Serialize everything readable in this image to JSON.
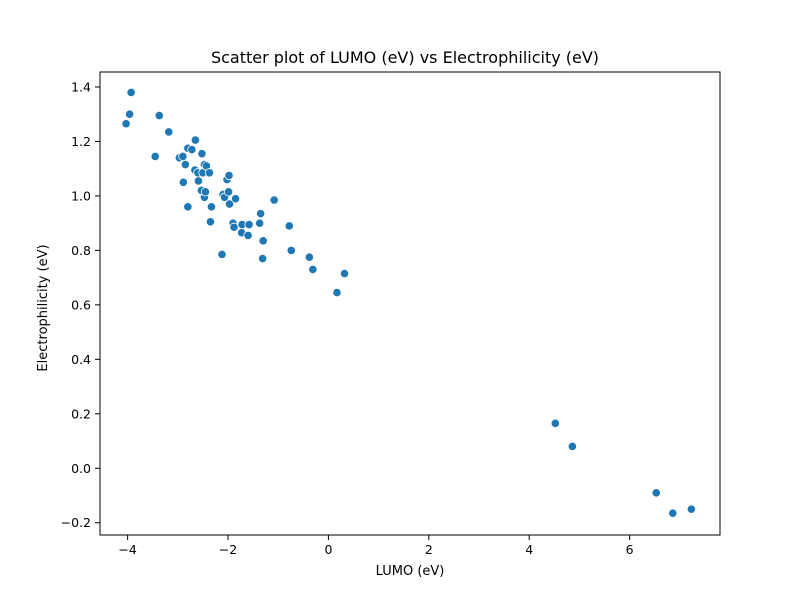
{
  "chart_data": {
    "type": "scatter",
    "title": "Scatter plot of LUMO (eV) vs Electrophilicity (eV)",
    "xlabel": "LUMO (eV)",
    "ylabel": "Electrophilicity (eV)",
    "xlim": [
      -4.55,
      7.8
    ],
    "ylim": [
      -0.245,
      1.455
    ],
    "xticks": [
      -4,
      -2,
      0,
      2,
      4,
      6
    ],
    "xtick_labels": [
      "−4",
      "−2",
      "0",
      "2",
      "4",
      "6"
    ],
    "yticks": [
      -0.2,
      0.0,
      0.2,
      0.4,
      0.6,
      0.8,
      1.0,
      1.2,
      1.4
    ],
    "ytick_labels": [
      "−0.2",
      "0.0",
      "0.2",
      "0.4",
      "0.6",
      "0.8",
      "1.0",
      "1.2",
      "1.4"
    ],
    "grid": false,
    "legend": "none",
    "marker_color": "#1f77b4",
    "points": [
      {
        "x": -4.03,
        "y": 1.265
      },
      {
        "x": -3.96,
        "y": 1.3
      },
      {
        "x": -3.93,
        "y": 1.38
      },
      {
        "x": -3.45,
        "y": 1.145
      },
      {
        "x": -3.37,
        "y": 1.295
      },
      {
        "x": -3.18,
        "y": 1.235
      },
      {
        "x": -2.97,
        "y": 1.14
      },
      {
        "x": -2.9,
        "y": 1.145
      },
      {
        "x": -2.89,
        "y": 1.05
      },
      {
        "x": -2.85,
        "y": 1.115
      },
      {
        "x": -2.8,
        "y": 1.175
      },
      {
        "x": -2.8,
        "y": 0.96
      },
      {
        "x": -2.72,
        "y": 1.17
      },
      {
        "x": -2.65,
        "y": 1.205
      },
      {
        "x": -2.66,
        "y": 1.095
      },
      {
        "x": -2.6,
        "y": 1.085
      },
      {
        "x": -2.59,
        "y": 1.055
      },
      {
        "x": -2.52,
        "y": 1.155
      },
      {
        "x": -2.5,
        "y": 1.085
      },
      {
        "x": -2.47,
        "y": 1.115
      },
      {
        "x": -2.43,
        "y": 1.11
      },
      {
        "x": -2.53,
        "y": 1.02
      },
      {
        "x": -2.47,
        "y": 0.995
      },
      {
        "x": -2.45,
        "y": 1.015
      },
      {
        "x": -2.37,
        "y": 1.085
      },
      {
        "x": -2.33,
        "y": 0.96
      },
      {
        "x": -2.35,
        "y": 0.905
      },
      {
        "x": -2.12,
        "y": 0.785
      },
      {
        "x": -2.1,
        "y": 1.005
      },
      {
        "x": -2.07,
        "y": 0.995
      },
      {
        "x": -2.02,
        "y": 1.06
      },
      {
        "x": -1.98,
        "y": 1.075
      },
      {
        "x": -1.99,
        "y": 1.015
      },
      {
        "x": -1.97,
        "y": 0.97
      },
      {
        "x": -1.9,
        "y": 0.9
      },
      {
        "x": -1.88,
        "y": 0.885
      },
      {
        "x": -1.85,
        "y": 0.99
      },
      {
        "x": -1.72,
        "y": 0.895
      },
      {
        "x": -1.73,
        "y": 0.865
      },
      {
        "x": -1.6,
        "y": 0.855
      },
      {
        "x": -1.58,
        "y": 0.895
      },
      {
        "x": -1.35,
        "y": 0.935
      },
      {
        "x": -1.37,
        "y": 0.9
      },
      {
        "x": -1.3,
        "y": 0.835
      },
      {
        "x": -1.31,
        "y": 0.77
      },
      {
        "x": -1.08,
        "y": 0.985
      },
      {
        "x": -0.78,
        "y": 0.89
      },
      {
        "x": -0.74,
        "y": 0.8
      },
      {
        "x": -0.38,
        "y": 0.775
      },
      {
        "x": -0.31,
        "y": 0.73
      },
      {
        "x": 0.17,
        "y": 0.645
      },
      {
        "x": 0.32,
        "y": 0.715
      },
      {
        "x": 4.52,
        "y": 0.165
      },
      {
        "x": 4.86,
        "y": 0.08
      },
      {
        "x": 6.53,
        "y": -0.09
      },
      {
        "x": 6.86,
        "y": -0.165
      },
      {
        "x": 7.23,
        "y": -0.15
      }
    ]
  }
}
